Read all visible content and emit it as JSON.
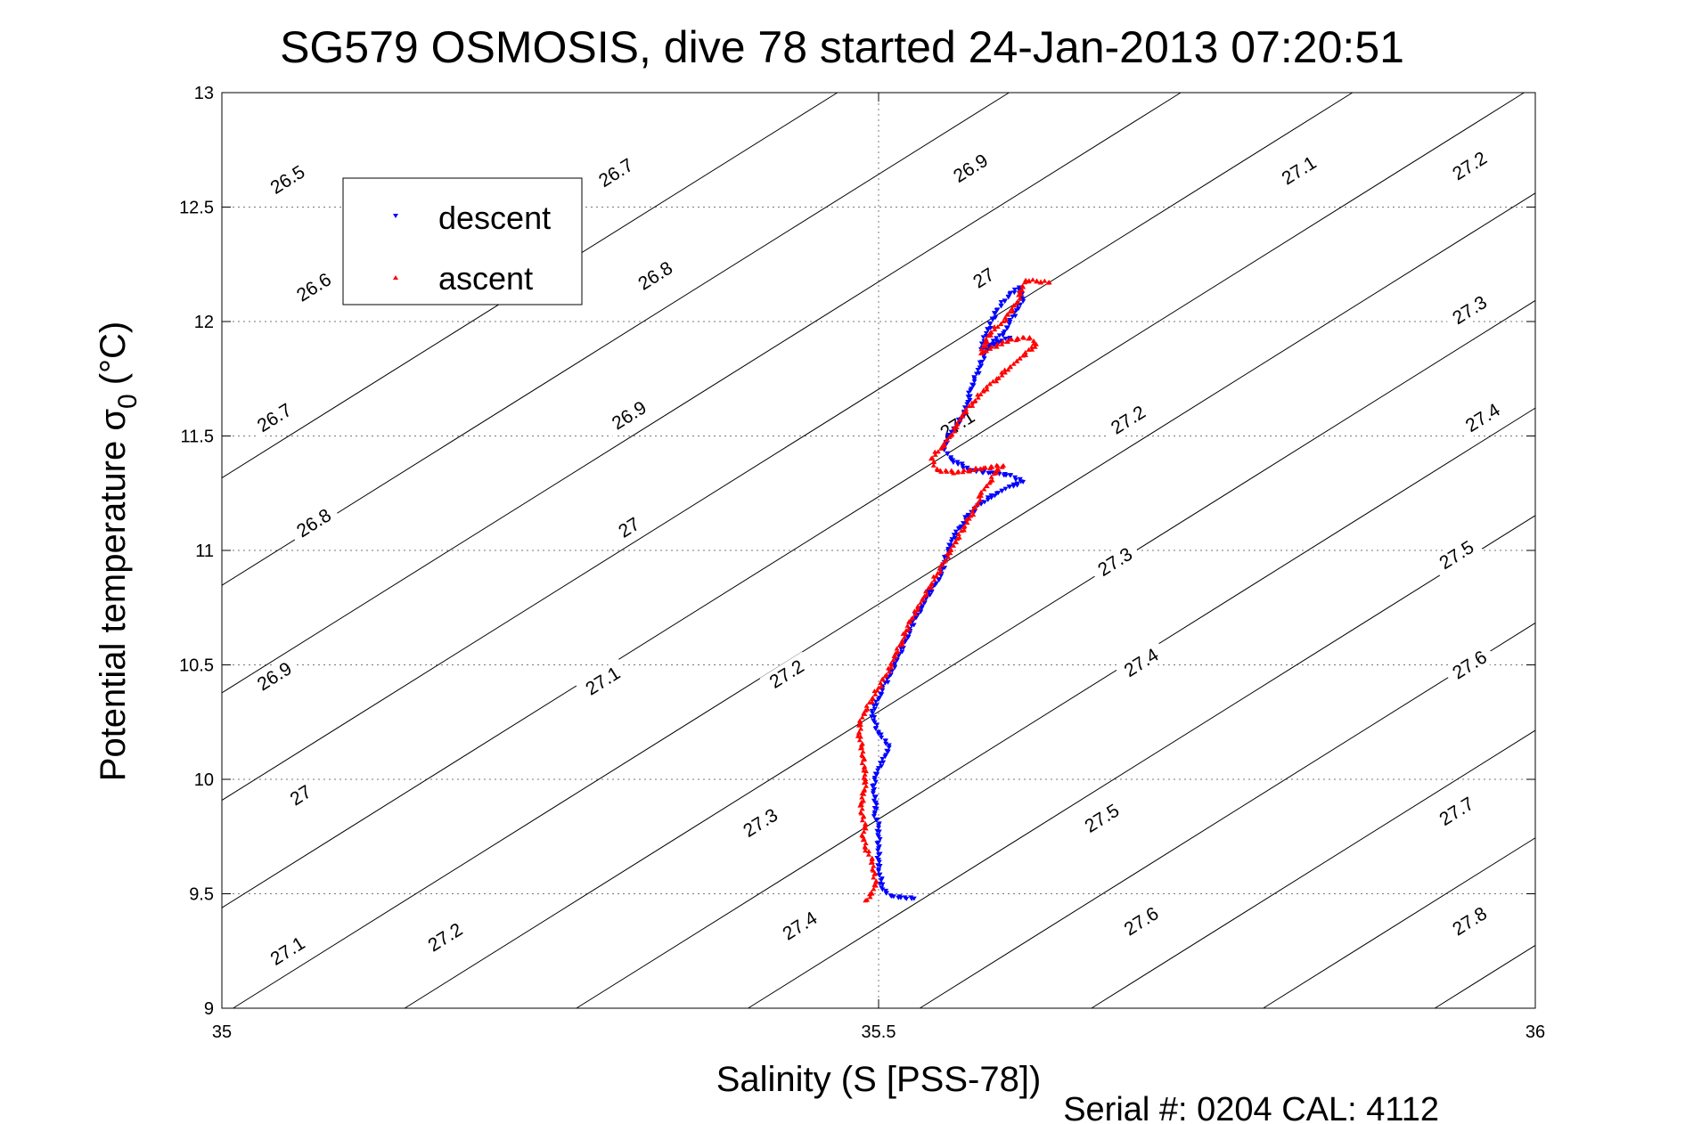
{
  "chart_data": {
    "type": "scatter",
    "title": "SG579 OSMOSIS, dive 78 started 24-Jan-2013 07:20:51",
    "xlabel": "Salinity (S [PSS-78])",
    "ylabel_main": "Potential temperature σ",
    "ylabel_sub": "0",
    "ylabel_unit": "(°C)",
    "xlim": [
      35,
      36
    ],
    "ylim": [
      9,
      13
    ],
    "xticks": [
      "35",
      "35.5",
      "36"
    ],
    "xtick_values": [
      35,
      35.5,
      36
    ],
    "yticks": [
      "9",
      "9.5",
      "10",
      "10.5",
      "11",
      "11.5",
      "12",
      "12.5",
      "13"
    ],
    "ytick_values": [
      9,
      9.5,
      10,
      10.5,
      11,
      11.5,
      12,
      12.5,
      13
    ],
    "grid": true,
    "legend_position": "upper-left",
    "footer": "Serial #: 0204  CAL: 4112",
    "density_contours": {
      "levels": [
        26.5,
        26.6,
        26.7,
        26.8,
        26.9,
        27,
        27.1,
        27.2,
        27.3,
        27.4,
        27.5,
        27.6,
        27.7,
        27.8
      ],
      "labels": [
        {
          "text": "26.5",
          "s": 35.05,
          "t": 12.62
        },
        {
          "text": "26.6",
          "s": 35.07,
          "t": 12.15
        },
        {
          "text": "26.7",
          "s": 35.04,
          "t": 11.58
        },
        {
          "text": "26.8",
          "s": 35.07,
          "t": 11.12
        },
        {
          "text": "26.9",
          "s": 35.04,
          "t": 10.45
        },
        {
          "text": "27",
          "s": 35.06,
          "t": 9.93
        },
        {
          "text": "27.1",
          "s": 35.05,
          "t": 9.25
        },
        {
          "text": "26.7",
          "s": 35.3,
          "t": 12.65
        },
        {
          "text": "26.8",
          "s": 35.33,
          "t": 12.2
        },
        {
          "text": "26.9",
          "s": 35.31,
          "t": 11.59
        },
        {
          "text": "27",
          "s": 35.31,
          "t": 11.1
        },
        {
          "text": "27.1",
          "s": 35.29,
          "t": 10.43
        },
        {
          "text": "27.2",
          "s": 35.17,
          "t": 9.31
        },
        {
          "text": "27.2",
          "s": 35.43,
          "t": 10.46
        },
        {
          "text": "27.3",
          "s": 35.41,
          "t": 9.81
        },
        {
          "text": "27.4",
          "s": 35.44,
          "t": 9.36
        },
        {
          "text": "26.9",
          "s": 35.57,
          "t": 12.67
        },
        {
          "text": "27",
          "s": 35.58,
          "t": 12.19
        },
        {
          "text": "27.1",
          "s": 35.56,
          "t": 11.55
        },
        {
          "text": "27.2",
          "s": 35.69,
          "t": 11.57
        },
        {
          "text": "27.3",
          "s": 35.68,
          "t": 10.95
        },
        {
          "text": "27.4",
          "s": 35.7,
          "t": 10.51
        },
        {
          "text": "27.5",
          "s": 35.67,
          "t": 9.83
        },
        {
          "text": "27.6",
          "s": 35.7,
          "t": 9.38
        },
        {
          "text": "27.1",
          "s": 35.82,
          "t": 12.66
        },
        {
          "text": "27.2",
          "s": 35.95,
          "t": 12.68
        },
        {
          "text": "27.3",
          "s": 35.95,
          "t": 12.05
        },
        {
          "text": "27.4",
          "s": 35.96,
          "t": 11.58
        },
        {
          "text": "27.5",
          "s": 35.94,
          "t": 10.98
        },
        {
          "text": "27.6",
          "s": 35.95,
          "t": 10.5
        },
        {
          "text": "27.7",
          "s": 35.94,
          "t": 9.86
        },
        {
          "text": "27.8",
          "s": 35.95,
          "t": 9.38
        }
      ]
    },
    "series": [
      {
        "name": "descent",
        "color": "#0000ff",
        "marker": "triangle-down",
        "points": [
          [
            35.527,
            9.48
          ],
          [
            35.52,
            9.485
          ],
          [
            35.51,
            9.49
          ],
          [
            35.503,
            9.52
          ],
          [
            35.502,
            9.56
          ],
          [
            35.5,
            9.6
          ],
          [
            35.5,
            9.65
          ],
          [
            35.5,
            9.7
          ],
          [
            35.5,
            9.75
          ],
          [
            35.5,
            9.8
          ],
          [
            35.497,
            9.85
          ],
          [
            35.498,
            9.9
          ],
          [
            35.496,
            9.95
          ],
          [
            35.497,
            10.0
          ],
          [
            35.5,
            10.05
          ],
          [
            35.505,
            10.1
          ],
          [
            35.508,
            10.15
          ],
          [
            35.5,
            10.2
          ],
          [
            35.497,
            10.25
          ],
          [
            35.495,
            10.3
          ],
          [
            35.5,
            10.35
          ],
          [
            35.503,
            10.4
          ],
          [
            35.508,
            10.45
          ],
          [
            35.512,
            10.5
          ],
          [
            35.516,
            10.55
          ],
          [
            35.52,
            10.6
          ],
          [
            35.524,
            10.65
          ],
          [
            35.527,
            10.7
          ],
          [
            35.533,
            10.75
          ],
          [
            35.537,
            10.8
          ],
          [
            35.543,
            10.85
          ],
          [
            35.548,
            10.9
          ],
          [
            35.55,
            10.95
          ],
          [
            35.553,
            11.0
          ],
          [
            35.556,
            11.05
          ],
          [
            35.562,
            11.1
          ],
          [
            35.568,
            11.15
          ],
          [
            35.576,
            11.2
          ],
          [
            35.59,
            11.25
          ],
          [
            35.6,
            11.28
          ],
          [
            35.61,
            11.3
          ],
          [
            35.6,
            11.33
          ],
          [
            35.585,
            11.34
          ],
          [
            35.57,
            11.35
          ],
          [
            35.555,
            11.4
          ],
          [
            35.55,
            11.45
          ],
          [
            35.553,
            11.5
          ],
          [
            35.56,
            11.55
          ],
          [
            35.565,
            11.6
          ],
          [
            35.568,
            11.65
          ],
          [
            35.57,
            11.7
          ],
          [
            35.573,
            11.75
          ],
          [
            35.577,
            11.8
          ],
          [
            35.58,
            11.85
          ],
          [
            35.585,
            11.9
          ],
          [
            35.595,
            11.95
          ],
          [
            35.6,
            12.0
          ],
          [
            35.605,
            12.05
          ],
          [
            35.61,
            12.1
          ],
          [
            35.607,
            12.15
          ],
          [
            35.6,
            12.12
          ],
          [
            35.59,
            12.05
          ],
          [
            35.582,
            11.95
          ],
          [
            35.578,
            11.88
          ],
          [
            35.588,
            11.9
          ],
          [
            35.6,
            11.93
          ]
        ]
      },
      {
        "name": "ascent",
        "color": "#ff0000",
        "marker": "triangle-up",
        "points": [
          [
            35.49,
            9.47
          ],
          [
            35.495,
            9.5
          ],
          [
            35.498,
            9.55
          ],
          [
            35.496,
            9.6
          ],
          [
            35.495,
            9.65
          ],
          [
            35.49,
            9.7
          ],
          [
            35.488,
            9.75
          ],
          [
            35.49,
            9.8
          ],
          [
            35.487,
            9.85
          ],
          [
            35.487,
            9.9
          ],
          [
            35.489,
            9.95
          ],
          [
            35.49,
            10.0
          ],
          [
            35.489,
            10.05
          ],
          [
            35.488,
            10.1
          ],
          [
            35.487,
            10.15
          ],
          [
            35.485,
            10.2
          ],
          [
            35.486,
            10.25
          ],
          [
            35.49,
            10.3
          ],
          [
            35.495,
            10.35
          ],
          [
            35.5,
            10.4
          ],
          [
            35.505,
            10.45
          ],
          [
            35.51,
            10.5
          ],
          [
            35.513,
            10.55
          ],
          [
            35.518,
            10.6
          ],
          [
            35.521,
            10.65
          ],
          [
            35.525,
            10.7
          ],
          [
            35.53,
            10.75
          ],
          [
            35.535,
            10.8
          ],
          [
            35.54,
            10.85
          ],
          [
            35.545,
            10.9
          ],
          [
            35.55,
            10.95
          ],
          [
            35.555,
            11.0
          ],
          [
            35.56,
            11.05
          ],
          [
            35.565,
            11.1
          ],
          [
            35.57,
            11.15
          ],
          [
            35.575,
            11.2
          ],
          [
            35.578,
            11.25
          ],
          [
            35.585,
            11.3
          ],
          [
            35.59,
            11.35
          ],
          [
            35.595,
            11.37
          ],
          [
            35.58,
            11.36
          ],
          [
            35.56,
            11.34
          ],
          [
            35.545,
            11.35
          ],
          [
            35.54,
            11.4
          ],
          [
            35.548,
            11.45
          ],
          [
            35.555,
            11.5
          ],
          [
            35.56,
            11.55
          ],
          [
            35.565,
            11.6
          ],
          [
            35.573,
            11.65
          ],
          [
            35.58,
            11.7
          ],
          [
            35.59,
            11.75
          ],
          [
            35.6,
            11.8
          ],
          [
            35.61,
            11.85
          ],
          [
            35.62,
            11.9
          ],
          [
            35.615,
            11.93
          ],
          [
            35.6,
            11.92
          ],
          [
            35.585,
            11.88
          ],
          [
            35.578,
            11.86
          ],
          [
            35.585,
            11.95
          ],
          [
            35.595,
            12.0
          ],
          [
            35.605,
            12.08
          ],
          [
            35.61,
            12.15
          ],
          [
            35.612,
            12.18
          ],
          [
            35.63,
            12.17
          ]
        ]
      }
    ]
  }
}
